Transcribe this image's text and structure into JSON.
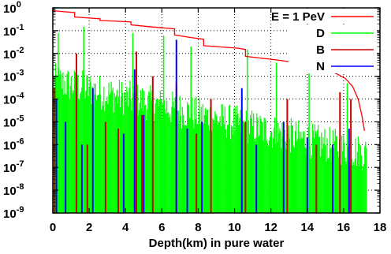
{
  "chart_data": {
    "type": "line",
    "xlabel": "Depth(km) in pure water",
    "ylabel": "",
    "xlim": [
      0,
      18
    ],
    "ylim": [
      1e-09,
      1
    ],
    "y_scale": "log",
    "grid": true,
    "x_ticks": [
      0,
      2,
      4,
      6,
      8,
      10,
      12,
      14,
      16,
      18
    ],
    "x_tick_labels": [
      "0",
      "2",
      "4",
      "6",
      "8",
      "10",
      "12",
      "14",
      "16",
      "18"
    ],
    "y_ticks": [
      1e-09,
      1e-08,
      1e-07,
      1e-06,
      1e-05,
      0.0001,
      0.001,
      0.01,
      0.1,
      1
    ],
    "y_tick_labels": [
      {
        "base": "10",
        "exp": "-9"
      },
      {
        "base": "10",
        "exp": "-8"
      },
      {
        "base": "10",
        "exp": "-7"
      },
      {
        "base": "10",
        "exp": "-6"
      },
      {
        "base": "10",
        "exp": "-5"
      },
      {
        "base": "10",
        "exp": "-4"
      },
      {
        "base": "10",
        "exp": "-3"
      },
      {
        "base": "10",
        "exp": "-2"
      },
      {
        "base": "10",
        "exp": "-1"
      },
      {
        "base": "10",
        "exp": "0"
      }
    ],
    "legend_position": "top-right",
    "series": [
      {
        "name": "E = 1 PeV",
        "color": "#ff0000",
        "style": "step-line",
        "x": [
          0,
          1.2,
          1.2,
          2.6,
          2.6,
          3.5,
          4.3,
          4.3,
          5.3,
          6.7,
          6.7,
          7.6,
          8.3,
          8.3,
          10.2,
          10.6,
          10.6,
          12.5,
          13.5,
          14.3,
          15,
          15.6,
          16.1,
          16.5,
          16.8,
          17.0,
          17.15
        ],
        "values": [
          0.75,
          0.62,
          0.4,
          0.33,
          0.28,
          0.26,
          0.24,
          0.18,
          0.15,
          0.12,
          0.065,
          0.05,
          0.042,
          0.022,
          0.017,
          0.015,
          0.0075,
          0.005,
          0.0038,
          0.0028,
          0.002,
          0.0013,
          0.0008,
          0.00035,
          0.0001,
          2e-05,
          4e-06
        ]
      },
      {
        "name": "D",
        "color": "#00ff00",
        "style": "dense-spikes",
        "x": [
          0.3,
          1.7,
          4.4,
          6.1,
          6.8,
          7.6,
          10.7,
          12.3,
          14.1,
          16.2
        ],
        "values": [
          0.08,
          0.15,
          0.08,
          0.06,
          0.03,
          0.02,
          0.015,
          0.004,
          0.002,
          0.0005
        ]
      },
      {
        "name": "B",
        "color": "#cc0000",
        "style": "spikes",
        "x": [
          0.1,
          1.3,
          1.9,
          2.9,
          3.6,
          4.6,
          4.9,
          5.5,
          6.8,
          7.9,
          8.7,
          10.6,
          12.9,
          14.5,
          15.8,
          16.4
        ],
        "values": [
          0.0003,
          0.01,
          1e-06,
          1e-05,
          5e-06,
          0.012,
          2e-05,
          0.001,
          0.0005,
          3e-06,
          0.0001,
          1e-05,
          0.0001,
          1e-06,
          0.0002,
          0.0001
        ]
      },
      {
        "name": "N",
        "color": "#0000ff",
        "style": "spikes",
        "x": [
          0.2,
          0.7,
          1.6,
          2.2,
          3.9,
          4.5,
          5.0,
          6.8,
          7.4,
          8.2,
          10.4,
          11.2,
          12.7,
          14.0,
          15.4,
          16.3
        ],
        "values": [
          0.0001,
          1e-05,
          1e-06,
          0.0003,
          3e-06,
          0.002,
          2e-05,
          0.04,
          5e-06,
          1e-05,
          0.0003,
          1e-06,
          1e-05,
          2e-06,
          1e-06,
          5e-06
        ]
      }
    ]
  }
}
